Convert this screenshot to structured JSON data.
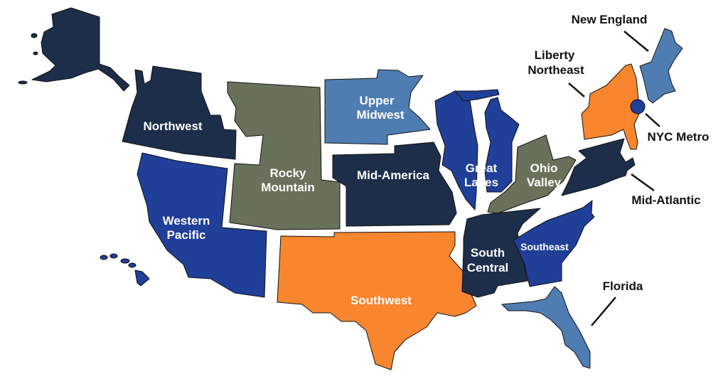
{
  "colors": {
    "navy": "#1d2e4a",
    "blue": "#1f3f98",
    "light_blue": "#4f7db2",
    "olive": "#6a715b",
    "orange": "#f7862f"
  },
  "regions": {
    "northwest": {
      "label": "Northwest",
      "color": "#1d2e4a"
    },
    "western_pacific": {
      "label1": "Western",
      "label2": "Pacific",
      "color": "#1f3f98"
    },
    "rocky_mountain": {
      "label1": "Rocky",
      "label2": "Mountain",
      "color": "#6a715b"
    },
    "upper_midwest": {
      "label1": "Upper",
      "label2": "Midwest",
      "color": "#4f7db2"
    },
    "mid_america": {
      "label": "Mid-America",
      "color": "#1d2e4a"
    },
    "southwest": {
      "label": "Southwest",
      "color": "#f7862f"
    },
    "great_lakes": {
      "label1": "Great",
      "label2": "Lakes",
      "color": "#1f3f98"
    },
    "ohio_valley": {
      "label1": "Ohio",
      "label2": "Valley",
      "color": "#6a715b"
    },
    "south_central": {
      "label1": "South",
      "label2": "Central",
      "color": "#1d2e4a"
    },
    "southeast": {
      "label": "Southeast",
      "color": "#1f3f98"
    },
    "florida": {
      "label": "Florida",
      "color": "#4f7db2"
    },
    "mid_atlantic": {
      "label": "Mid-Atlantic",
      "color": "#1d2e4a"
    },
    "liberty_northeast": {
      "label1": "Liberty",
      "label2": "Northeast",
      "color": "#f7862f"
    },
    "nyc_metro": {
      "label": "NYC Metro",
      "color": "#1f3f98"
    },
    "new_england": {
      "label": "New England",
      "color": "#4f7db2"
    }
  }
}
